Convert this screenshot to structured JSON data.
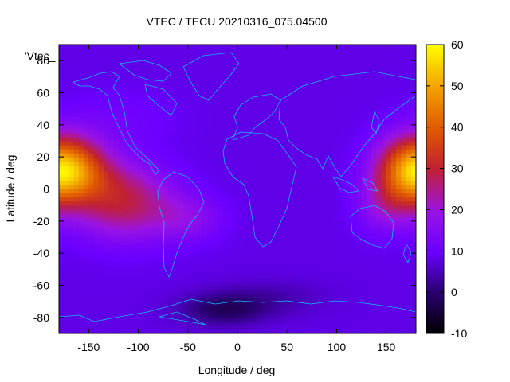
{
  "chart_data": {
    "type": "heatmap",
    "title": "VTEC / TECU 20210316_075.04500",
    "xlabel": "Longitude / deg",
    "ylabel": "Latitude / deg",
    "xlim": [
      -180,
      180
    ],
    "ylim": [
      -90,
      90
    ],
    "xticks": [
      -150,
      -100,
      -50,
      0,
      50,
      100,
      150
    ],
    "yticks": [
      -80,
      -60,
      -40,
      -20,
      0,
      20,
      40,
      60,
      80
    ],
    "colorbar": {
      "min": -10,
      "max": 60,
      "ticks": [
        -10,
        0,
        10,
        20,
        30,
        40,
        50,
        60
      ]
    },
    "legend": {
      "label": "'Vtec_",
      "position": "top-left"
    },
    "field": {
      "background_tecu": 8,
      "hotspots": [
        {
          "lon": -170,
          "lat": 12,
          "sigma_lon": 30,
          "sigma_lat": 14,
          "peak_tecu": 24
        },
        {
          "lon": -115,
          "lat": -8,
          "sigma_lon": 35,
          "sigma_lat": 16,
          "peak_tecu": 20
        },
        {
          "lon": -50,
          "lat": -18,
          "sigma_lon": 25,
          "sigma_lat": 10,
          "peak_tecu": 8
        },
        {
          "lon": 178,
          "lat": 12,
          "sigma_lon": 25,
          "sigma_lat": 15,
          "peak_tecu": 26
        },
        {
          "lon": 150,
          "lat": -10,
          "sigma_lon": 20,
          "sigma_lat": 12,
          "peak_tecu": 10
        },
        {
          "lon": -120,
          "lat": 45,
          "sigma_lon": 40,
          "sigma_lat": 12,
          "peak_tecu": 3
        }
      ],
      "lows": [
        {
          "lon": -15,
          "lat": -75,
          "sigma_lon": 30,
          "sigma_lat": 7,
          "depth_tecu": 9
        },
        {
          "lon": 30,
          "lat": -68,
          "sigma_lon": 40,
          "sigma_lat": 8,
          "depth_tecu": 4
        }
      ]
    }
  }
}
